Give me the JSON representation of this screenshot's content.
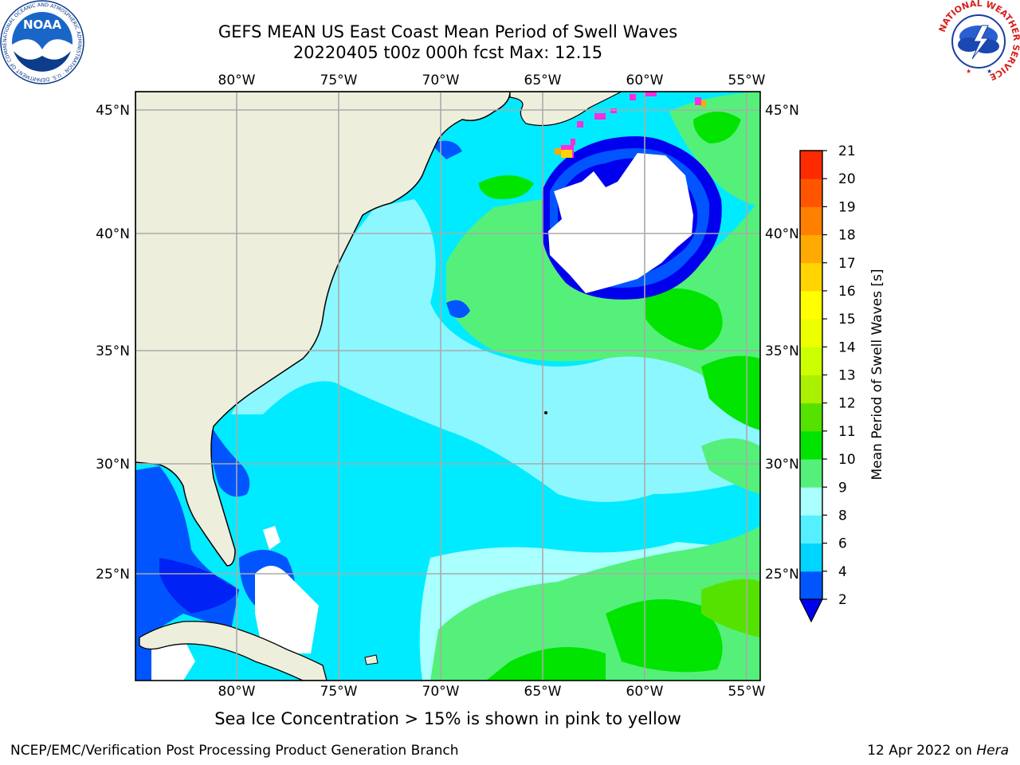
{
  "title_line1": "GEFS MEAN US East Coast Mean Period of Swell Waves",
  "title_line2": "20220405 t00z 000h fcst   Max: 12.15",
  "lon_labels": [
    "80°W",
    "75°W",
    "70°W",
    "65°W",
    "60°W",
    "55°W"
  ],
  "lat_labels": [
    "45°N",
    "40°N",
    "35°N",
    "30°N",
    "25°N"
  ],
  "colorbar": {
    "label": "Mean Period of Swell Waves [s]",
    "ticks": [
      "2",
      "4",
      "6",
      "8",
      "9",
      "10",
      "11",
      "12",
      "13",
      "14",
      "15",
      "16",
      "17",
      "18",
      "19",
      "20",
      "21"
    ],
    "colors": [
      "#0055ff",
      "#00d5ff",
      "#55f0ff",
      "#aaffff",
      "#55f07a",
      "#00e400",
      "#55e200",
      "#aaf000",
      "#ccff00",
      "#eeff00",
      "#ffff00",
      "#ffd400",
      "#ffaa00",
      "#ff8000",
      "#ff5500",
      "#ff2b00"
    ],
    "under_color": "#0000ee"
  },
  "subtitle": "Sea Ice Concentration > 15% is shown in pink to yellow",
  "footer": {
    "left": "NCEP/EMC/Verification Post Processing Product Generation Branch",
    "right_date": "12 Apr 2022 on",
    "right_machine": "Hera"
  },
  "logos": {
    "noaa_text": "NOAA",
    "noaa_ring": "NATIONAL OCEANIC AND ATMOSPHERIC ADMINISTRATION · U.S. DEPARTMENT OF COMMERCE",
    "nws_ring": "NATIONAL WEATHER SERVICE"
  }
}
